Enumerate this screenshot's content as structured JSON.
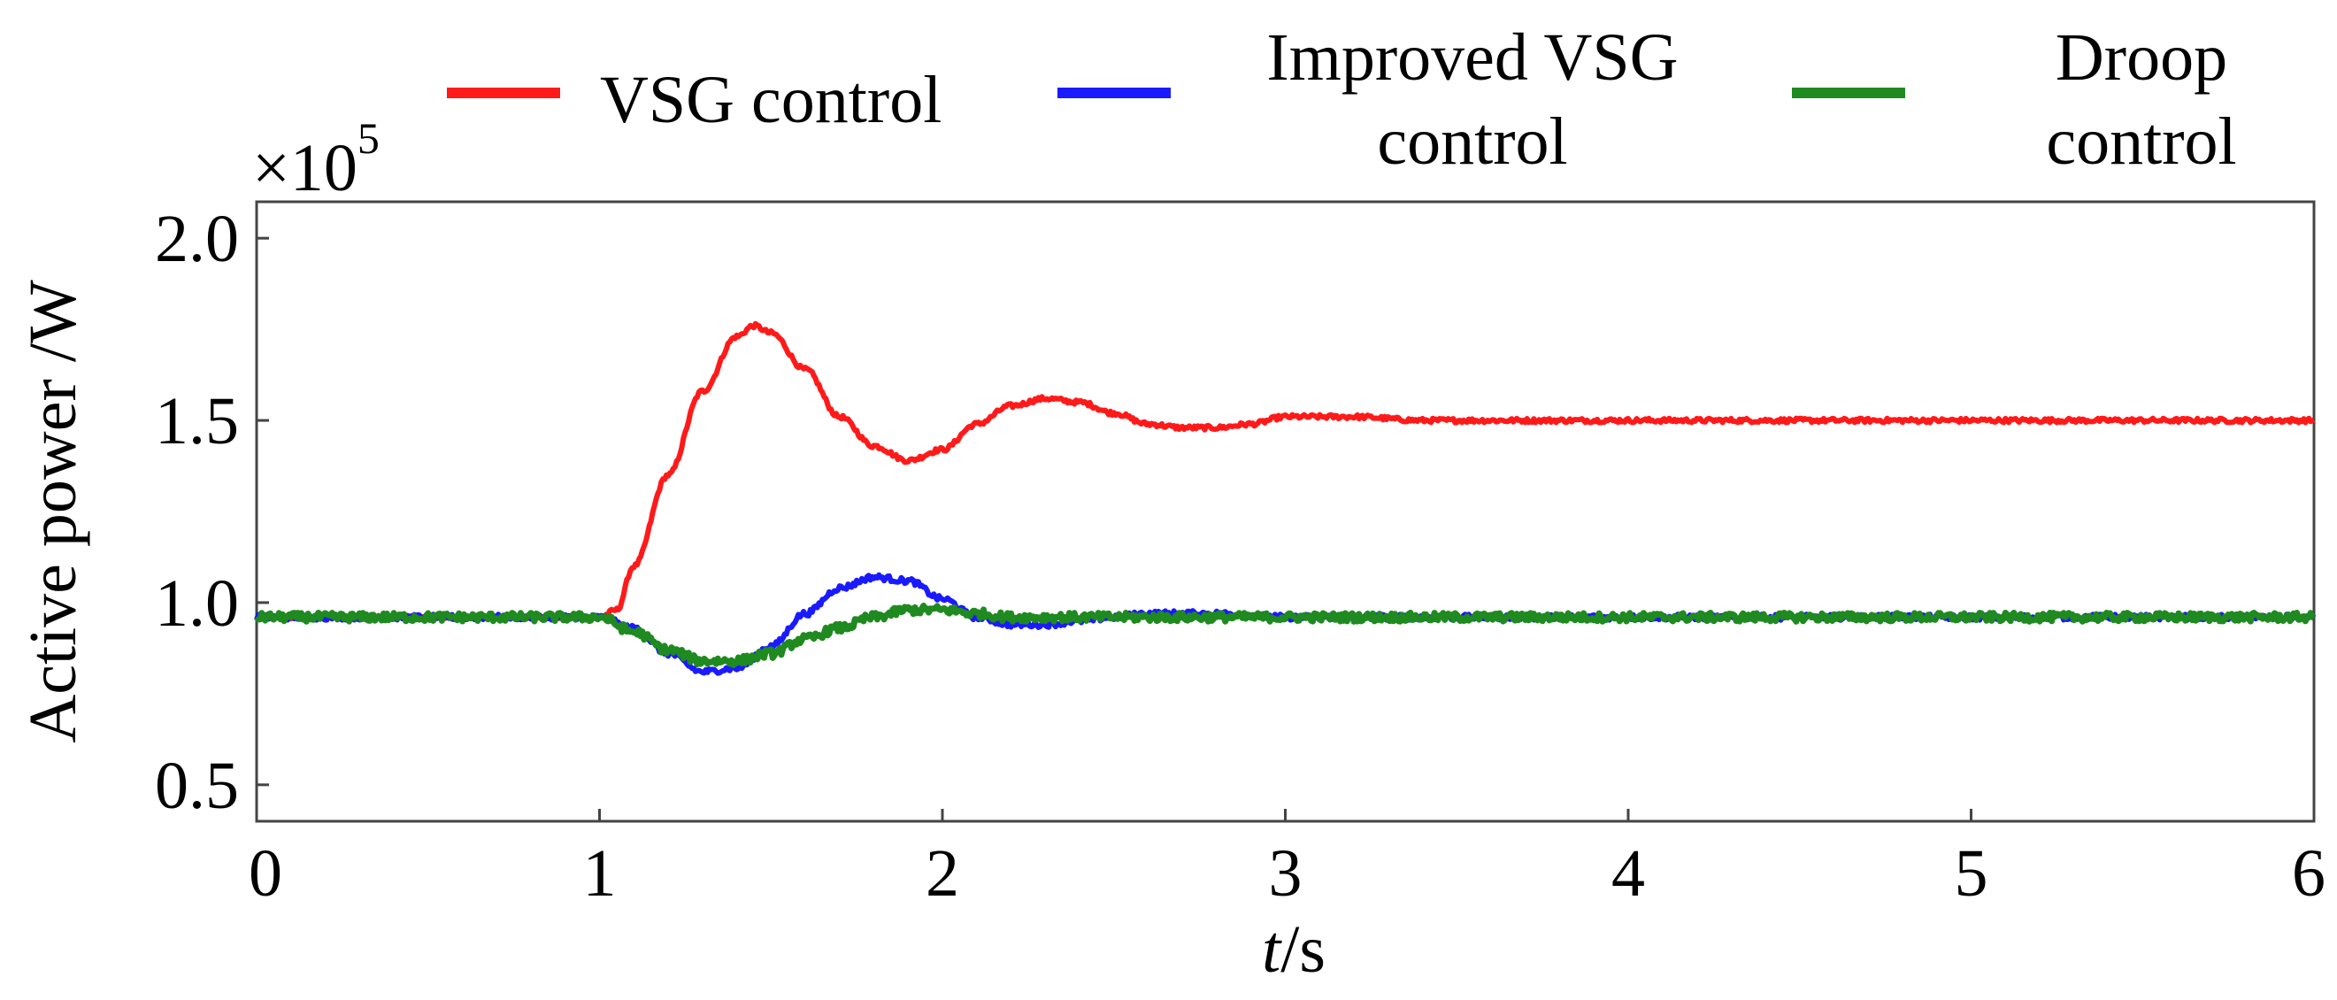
{
  "chart_data": {
    "type": "line",
    "title": "",
    "xlabel_italic": "t",
    "xlabel_rest": "/s",
    "ylabel": "Active power /W",
    "y_multiplier_base": "×10",
    "y_multiplier_exp": "5",
    "xlim": [
      0,
      6
    ],
    "ylim": [
      0.4,
      2.1
    ],
    "xticks": [
      0,
      1,
      2,
      3,
      4,
      5,
      6
    ],
    "xtick_labels": [
      "0",
      "1",
      "2",
      "3",
      "4",
      "5",
      "6"
    ],
    "yticks": [
      0.5,
      1.0,
      1.5,
      2.0
    ],
    "ytick_labels": [
      "0.5",
      "1.0",
      "1.5",
      "2.0"
    ],
    "grid": false,
    "legend_position": "top",
    "series": [
      {
        "name": "VSG control",
        "color": "#ff1a1a",
        "x": [
          0,
          1.0,
          1.05,
          1.1,
          1.2,
          1.3,
          1.4,
          1.45,
          1.5,
          1.6,
          1.7,
          1.8,
          1.9,
          2.0,
          2.1,
          2.2,
          2.3,
          2.4,
          2.5,
          2.6,
          2.7,
          2.8,
          2.9,
          3.0,
          3.2,
          3.4,
          3.6,
          3.8,
          4.0,
          4.5,
          5.0,
          5.5,
          6.0
        ],
        "values": [
          0.96,
          0.96,
          0.98,
          1.1,
          1.35,
          1.58,
          1.73,
          1.76,
          1.74,
          1.64,
          1.51,
          1.43,
          1.39,
          1.42,
          1.49,
          1.54,
          1.56,
          1.55,
          1.52,
          1.49,
          1.48,
          1.48,
          1.49,
          1.51,
          1.51,
          1.5,
          1.5,
          1.5,
          1.5,
          1.5,
          1.5,
          1.5,
          1.5
        ]
      },
      {
        "name": "Improved VSG control",
        "color": "#1a1aff",
        "x": [
          0,
          1.0,
          1.1,
          1.2,
          1.3,
          1.4,
          1.5,
          1.6,
          1.7,
          1.8,
          1.9,
          2.0,
          2.1,
          2.2,
          2.3,
          2.4,
          2.5,
          2.6,
          2.7,
          2.8,
          3.0,
          3.5,
          4.0,
          5.0,
          6.0
        ],
        "values": [
          0.96,
          0.96,
          0.93,
          0.86,
          0.81,
          0.82,
          0.88,
          0.97,
          1.04,
          1.07,
          1.06,
          1.01,
          0.96,
          0.94,
          0.94,
          0.95,
          0.96,
          0.97,
          0.97,
          0.97,
          0.96,
          0.96,
          0.96,
          0.96,
          0.96
        ]
      },
      {
        "name": "Droop control",
        "color": "#1f8a1f",
        "x": [
          0,
          1.0,
          1.1,
          1.2,
          1.3,
          1.4,
          1.5,
          1.6,
          1.7,
          1.8,
          1.9,
          2.0,
          2.1,
          2.2,
          2.5,
          3.0,
          4.0,
          5.0,
          6.0
        ],
        "values": [
          0.96,
          0.96,
          0.92,
          0.87,
          0.84,
          0.84,
          0.86,
          0.9,
          0.93,
          0.96,
          0.98,
          0.98,
          0.97,
          0.96,
          0.96,
          0.96,
          0.96,
          0.96,
          0.96
        ]
      }
    ],
    "legend": [
      {
        "lines": [
          "VSG control"
        ],
        "color": "#ff1a1a"
      },
      {
        "lines": [
          "Improved VSG",
          "control"
        ],
        "color": "#1a1aff"
      },
      {
        "lines": [
          "Droop",
          "control"
        ],
        "color": "#1f8a1f"
      }
    ]
  }
}
